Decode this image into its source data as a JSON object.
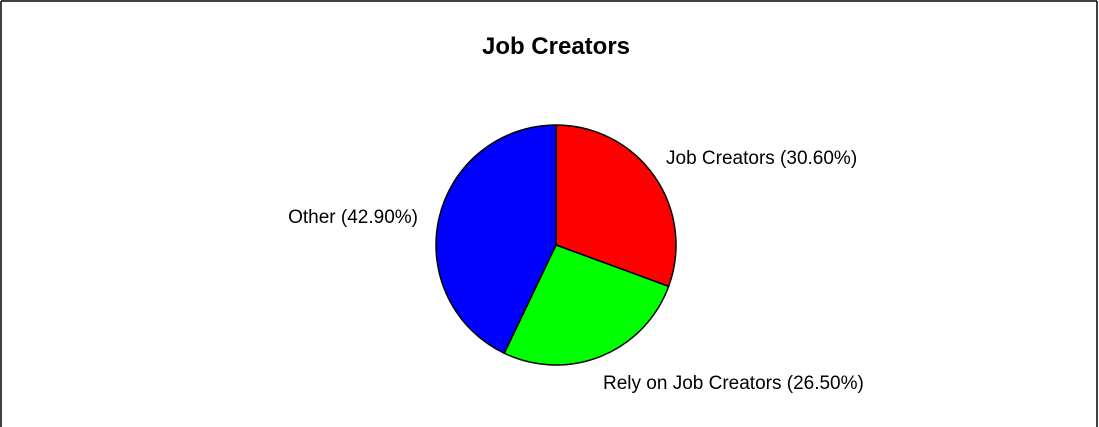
{
  "chart_data": {
    "type": "pie",
    "title": "Job Creators",
    "slices": [
      {
        "label": "Job Creators (30.60%)",
        "value": 30.6,
        "color": "#ff0000"
      },
      {
        "label": "Rely on Job Creators (26.50%)",
        "value": 26.5,
        "color": "#00ff00"
      },
      {
        "label": "Other (42.90%)",
        "value": 42.9,
        "color": "#0000ff"
      }
    ],
    "start_angle": "12 o'clock",
    "direction": "clockwise",
    "legend": "none",
    "border": true
  }
}
